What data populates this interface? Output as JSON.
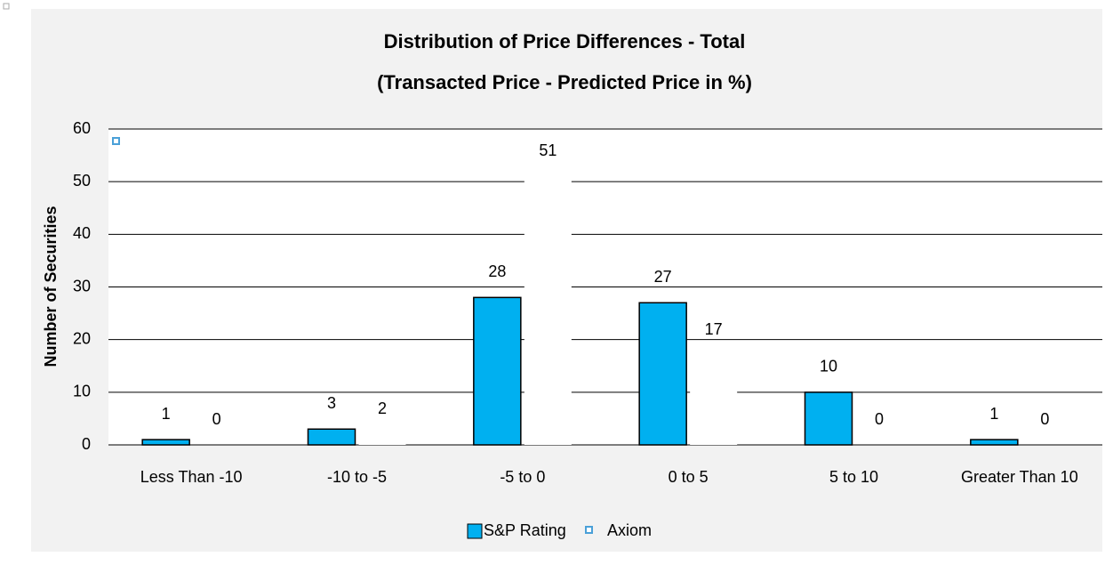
{
  "chart_data": {
    "type": "bar",
    "title": "Distribution of Price Differences - Total",
    "subtitle": "(Transacted Price - Predicted Price in %)",
    "y_label": "Number of Securities",
    "categories": [
      "Less Than -10",
      "-10 to -5",
      "-5 to 0",
      "0 to 5",
      "5 to 10",
      "Greater Than 10"
    ],
    "series": [
      {
        "name": "S&P Rating",
        "color": "#00b0f0",
        "values": [
          1,
          3,
          28,
          27,
          10,
          1
        ]
      },
      {
        "name": "Axiom",
        "color": "#ffffff",
        "values": [
          0,
          2,
          51,
          17,
          0,
          0
        ]
      }
    ],
    "ylim": [
      0,
      60
    ],
    "yticks": [
      0,
      10,
      20,
      30,
      40,
      50,
      60
    ],
    "grid": true,
    "legend": "bottom"
  }
}
